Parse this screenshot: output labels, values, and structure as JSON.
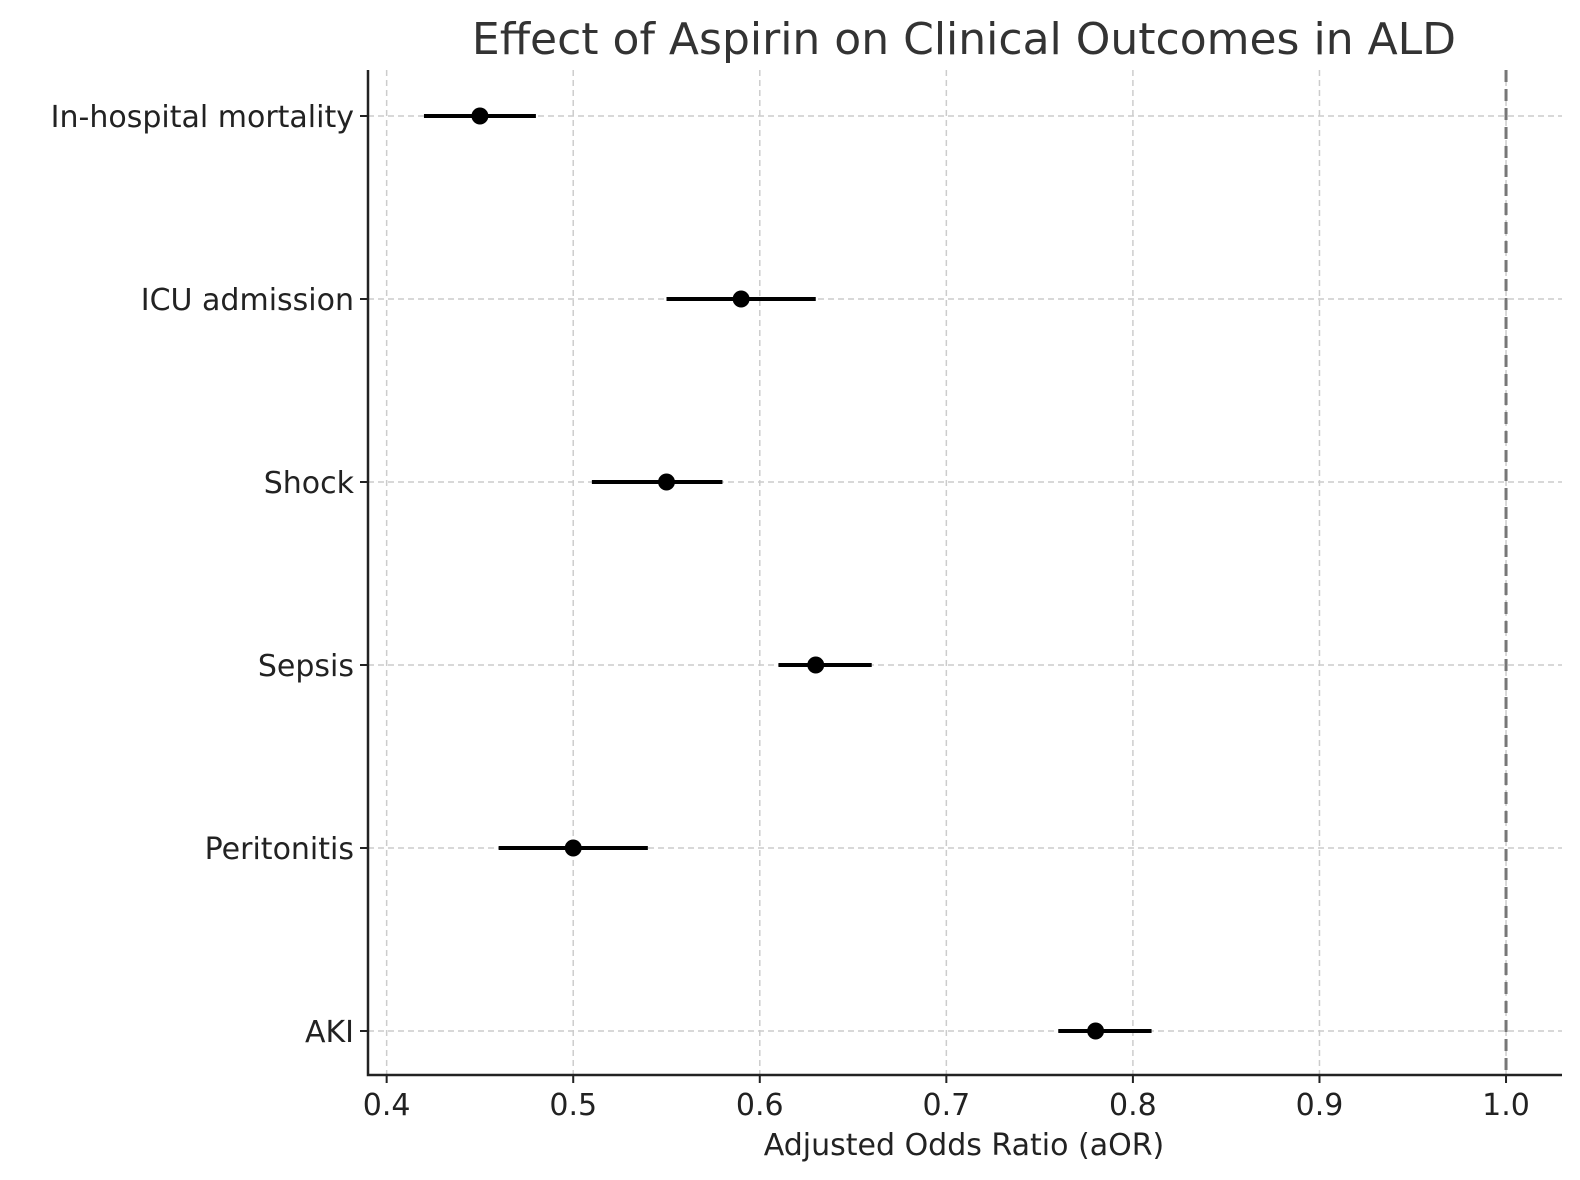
{
  "chart_data": {
    "type": "forest",
    "title": "Effect of Aspirin on Clinical Outcomes in ALD",
    "xlabel": "Adjusted Odds Ratio (aOR)",
    "ylabel": "",
    "xlim": [
      0.39,
      1.03
    ],
    "xticks": [
      0.4,
      0.5,
      0.6,
      0.7,
      0.8,
      0.9,
      1.0
    ],
    "xtick_labels": [
      "0.4",
      "0.5",
      "0.6",
      "0.7",
      "0.8",
      "0.9",
      "1.0"
    ],
    "grid": true,
    "reference_line": 1.0,
    "categories": [
      "In-hospital mortality",
      "ICU admission",
      "Shock",
      "Sepsis",
      "Peritonitis",
      "AKI"
    ],
    "values": [
      0.45,
      0.59,
      0.55,
      0.63,
      0.5,
      0.78
    ],
    "ci_lower": [
      0.42,
      0.55,
      0.51,
      0.61,
      0.46,
      0.76
    ],
    "ci_upper": [
      0.48,
      0.63,
      0.58,
      0.66,
      0.54,
      0.81
    ],
    "colors": {
      "marker": "#000000",
      "reference": "#777777",
      "grid": "#cccccc"
    }
  }
}
